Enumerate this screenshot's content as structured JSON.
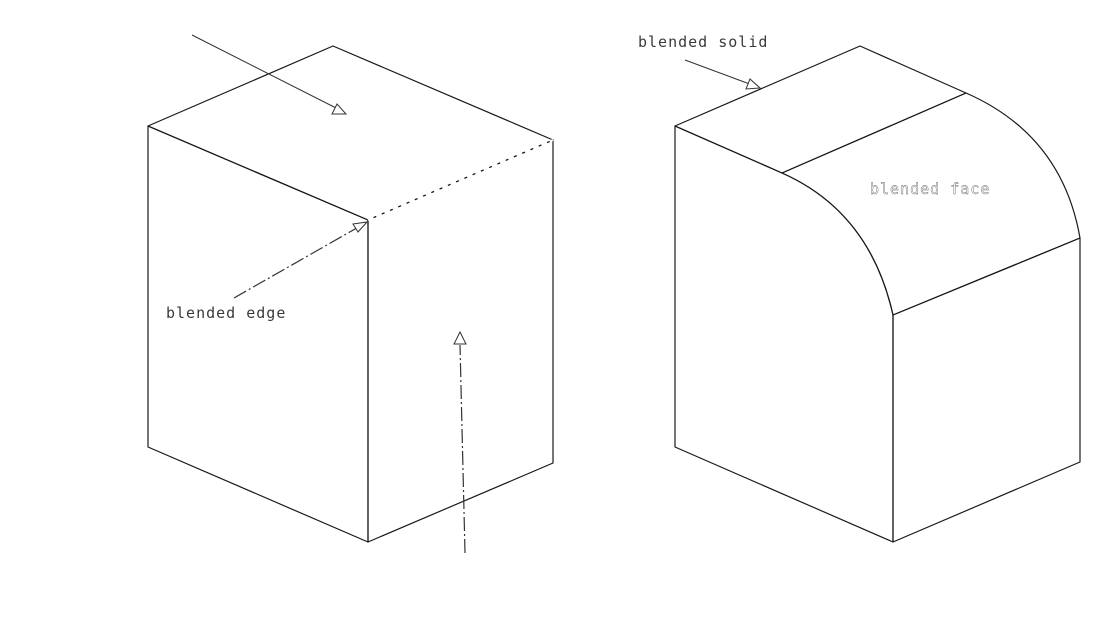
{
  "figure": {
    "left_panel": {
      "label_blended_edge": "blended edge"
    },
    "right_panel": {
      "label_blended_solid": "blended solid",
      "label_blended_face": "blended face"
    },
    "colors": {
      "top_face": "#e4e4e4",
      "left_face": "#c4c4c4",
      "right_face": "#7d7c80",
      "edge": "#1a1a1a"
    }
  }
}
